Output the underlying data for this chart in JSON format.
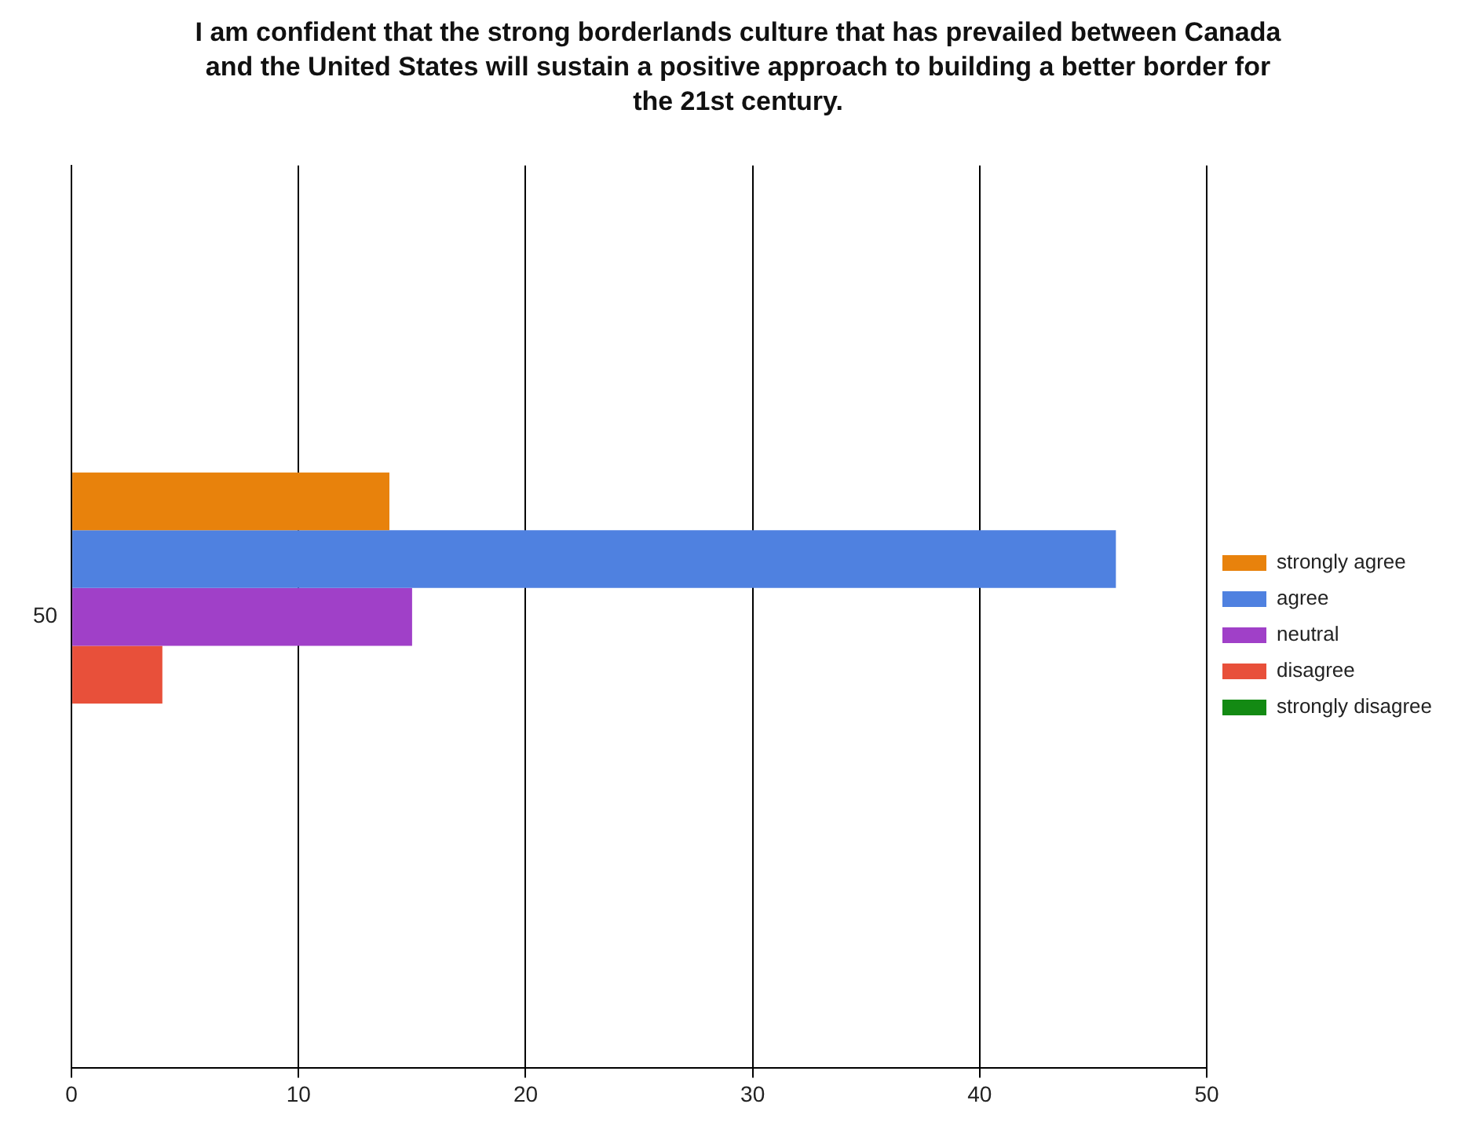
{
  "chart_data": {
    "type": "bar",
    "orientation": "horizontal",
    "title": "I am confident that the strong borderlands culture that has prevailed between Canada and the United States will sustain a positive approach to building a better border for the 21st century.",
    "categories": [
      "50"
    ],
    "series": [
      {
        "name": "strongly agree",
        "color": "#e8820c",
        "values": [
          14
        ]
      },
      {
        "name": "agree",
        "color": "#4f81e0",
        "values": [
          46
        ]
      },
      {
        "name": "neutral",
        "color": "#a040c8",
        "values": [
          15
        ]
      },
      {
        "name": "disagree",
        "color": "#e8503a",
        "values": [
          4
        ]
      },
      {
        "name": "strongly disagree",
        "color": "#138a13",
        "values": [
          0
        ]
      }
    ],
    "xlim": [
      0,
      50
    ],
    "xticks": [
      0,
      10,
      20,
      30,
      40,
      50
    ],
    "grid": "x",
    "legend": "right"
  }
}
